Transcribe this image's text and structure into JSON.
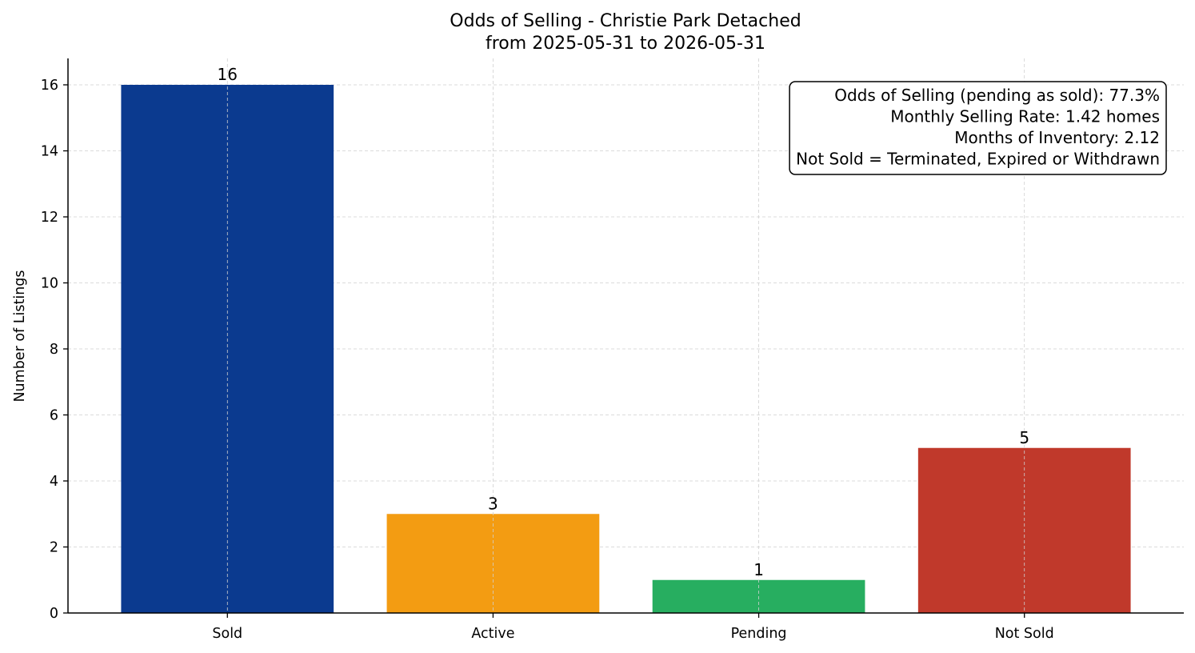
{
  "chart_data": {
    "type": "bar",
    "title": "Odds of Selling - Christie Park Detached",
    "subtitle": "from 2025-05-31 to 2026-05-31",
    "xlabel": "",
    "ylabel": "Number of Listings",
    "categories": [
      "Sold",
      "Active",
      "Pending",
      "Not Sold"
    ],
    "values": [
      16,
      3,
      1,
      5
    ],
    "data_labels": [
      "16",
      "3",
      "1",
      "5"
    ],
    "colors": [
      "#0b3a8f",
      "#f39c12",
      "#27ae60",
      "#c0392b"
    ],
    "ylim": [
      0,
      16.8
    ],
    "yticks": [
      0,
      2,
      4,
      6,
      8,
      10,
      12,
      14,
      16
    ],
    "grid": true,
    "info_box": {
      "placement": "top-right",
      "lines": [
        "Odds of Selling (pending as sold): 77.3%",
        "Monthly Selling Rate: 1.42 homes",
        "Months of Inventory: 2.12",
        "Not Sold = Terminated, Expired or Withdrawn"
      ]
    }
  }
}
